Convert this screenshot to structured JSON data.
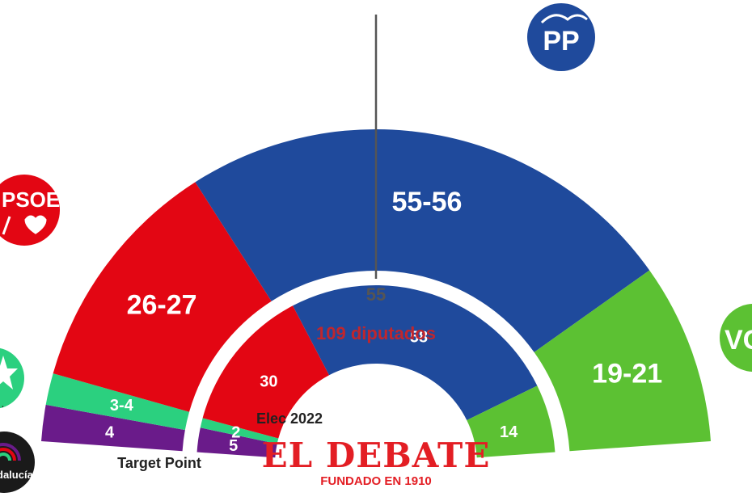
{
  "chart_data": {
    "type": "parliament-hemicycle",
    "total_label": "109 diputados",
    "majority_label": "55",
    "majority": 55,
    "seats_total": 109,
    "outer_ring": {
      "caption": "Target Point",
      "segments": [
        {
          "party": "Por Andalucía",
          "value": 4,
          "label": "4",
          "color": "#6a1b8a"
        },
        {
          "party": "Adelante Andalucía",
          "value": 3.5,
          "label": "3-4",
          "color": "#2bd07f"
        },
        {
          "party": "PSOE",
          "value": 26.5,
          "label": "26-27",
          "color": "#e30613"
        },
        {
          "party": "PP",
          "value": 55.5,
          "label": "55-56",
          "color": "#1f4a9c"
        },
        {
          "party": "Vox",
          "value": 20,
          "label": "19-21",
          "color": "#5cc133"
        }
      ]
    },
    "inner_ring": {
      "caption": "Elec 2022",
      "segments": [
        {
          "party": "Por Andalucía",
          "value": 5,
          "label": "5",
          "color": "#6a1b8a"
        },
        {
          "party": "Adelante Andalucía",
          "value": 2,
          "label": "2",
          "color": "#2bd07f"
        },
        {
          "party": "PSOE",
          "value": 30,
          "label": "30",
          "color": "#e30613"
        },
        {
          "party": "PP",
          "value": 58,
          "label": "58",
          "color": "#1f4a9c"
        },
        {
          "party": "Vox",
          "value": 14,
          "label": "14",
          "color": "#5cc133"
        }
      ]
    }
  },
  "logos": {
    "pp": "PP",
    "psoe": "PSOE",
    "vox": "VO",
    "por_andalucia": "dalucía",
    "adelante_caption": "."
  },
  "brand": {
    "name": "EL DEBATE",
    "tagline": "FUNDADO EN 1910",
    "color": "#e31e24"
  }
}
